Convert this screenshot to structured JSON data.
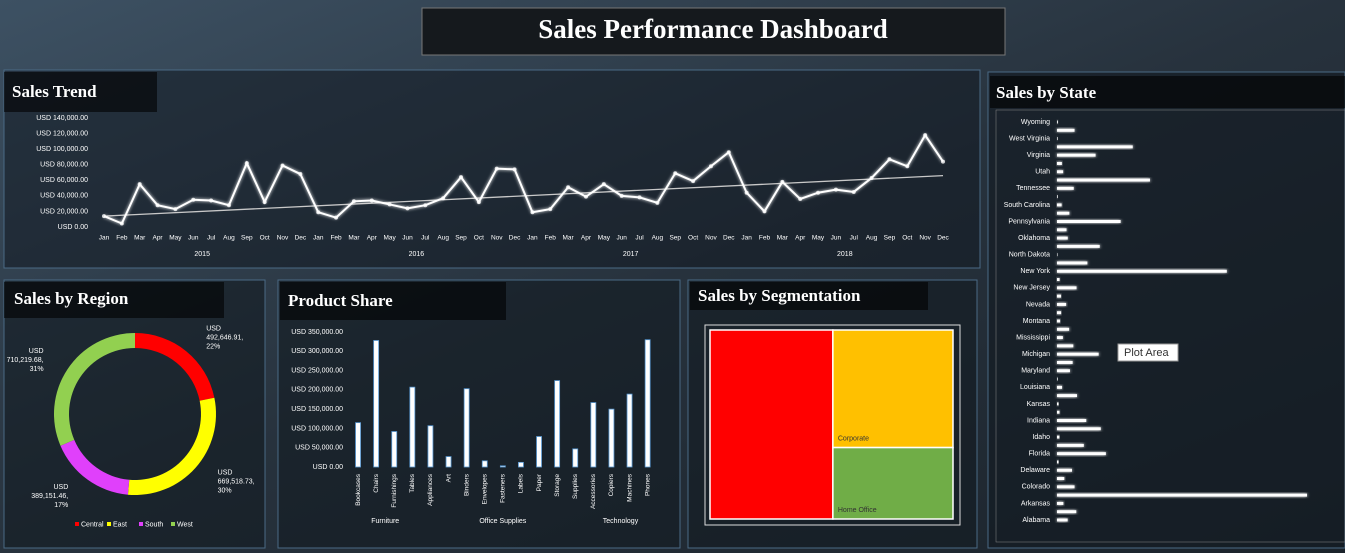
{
  "title": "Sales Performance Dashboard",
  "annotation": "Plot Area",
  "chart_data": [
    {
      "type": "line",
      "title": "Sales Trend",
      "groups": [
        {
          "label": "2015",
          "categories": [
            "Jan",
            "Feb",
            "Mar",
            "Apr",
            "May",
            "Jun",
            "Jul",
            "Aug",
            "Sep",
            "Oct",
            "Nov",
            "Dec"
          ]
        },
        {
          "label": "2016",
          "categories": [
            "Jan",
            "Feb",
            "Mar",
            "Apr",
            "May",
            "Jun",
            "Jul",
            "Aug",
            "Sep",
            "Oct",
            "Nov",
            "Dec"
          ]
        },
        {
          "label": "2017",
          "categories": [
            "Jan",
            "Feb",
            "Mar",
            "Apr",
            "May",
            "Jun",
            "Jul",
            "Aug",
            "Sep",
            "Oct",
            "Nov",
            "Dec"
          ]
        },
        {
          "label": "2018",
          "categories": [
            "Jan",
            "Feb",
            "Mar",
            "Apr",
            "May",
            "Jun",
            "Jul",
            "Aug",
            "Sep",
            "Oct",
            "Nov",
            "Dec"
          ]
        }
      ],
      "series": [
        {
          "color": "#ffffff",
          "values": [
            14000,
            4500,
            55000,
            28000,
            23000,
            35000,
            34000,
            28000,
            82000,
            32000,
            79000,
            68000,
            19000,
            12000,
            33000,
            34000,
            29000,
            24000,
            28000,
            37000,
            64000,
            32000,
            75000,
            74000,
            19000,
            23000,
            51000,
            39000,
            55000,
            40000,
            38000,
            31000,
            69000,
            59000,
            78000,
            96000,
            44000,
            20000,
            58000,
            36000,
            44000,
            48000,
            45000,
            63000,
            87000,
            78000,
            118000,
            84000
          ]
        }
      ],
      "trendline": {
        "color": "#c8c8c8",
        "values": [
          14000,
          66000
        ]
      },
      "ylim": [
        0,
        140000
      ],
      "yticks": [
        {
          "value": 0,
          "label": "USD 0.00"
        },
        {
          "value": 20000,
          "label": "USD 20,000.00"
        },
        {
          "value": 40000,
          "label": "USD 40,000.00"
        },
        {
          "value": 60000,
          "label": "USD 60,000.00"
        },
        {
          "value": 80000,
          "label": "USD 80,000.00"
        },
        {
          "value": 100000,
          "label": "USD 100,000.00"
        },
        {
          "value": 120000,
          "label": "USD 120,000.00"
        },
        {
          "value": 140000,
          "label": "USD 140,000.00"
        }
      ]
    },
    {
      "type": "donut",
      "title": "Sales by Region",
      "categories": [
        "Central",
        "East",
        "South",
        "West"
      ],
      "values": [
        492646.91,
        669518.73,
        389151.46,
        710219.68
      ],
      "value_labels": [
        "USD 492,646.91, 22%",
        "USD 669,518.73, 30%",
        "USD 389,151.46, 17%",
        "USD 710,219.68, 31%"
      ],
      "colors": [
        "#ff0000",
        "#ffff00",
        "#e040fb",
        "#92d050"
      ],
      "legend": "bottom"
    },
    {
      "type": "bar",
      "title": "Product Share",
      "groups": [
        {
          "label": "Furniture",
          "categories": [
            "Bookcases",
            "Chairs",
            "Furnishings",
            "Tables"
          ]
        },
        {
          "label": "Office Supplies",
          "categories": [
            "Appliances",
            "Art",
            "Binders",
            "Envelopes",
            "Fasteners",
            "Labels",
            "Paper",
            "Storage",
            "Supplies"
          ]
        },
        {
          "label": "Technology",
          "categories": [
            "Accessories",
            "Copiers",
            "Machines",
            "Phones"
          ]
        }
      ],
      "values": [
        115000,
        328000,
        92000,
        207000,
        107000,
        27000,
        203000,
        16000,
        3000,
        12000,
        79000,
        224000,
        47000,
        167000,
        150000,
        189000,
        330000
      ],
      "color": "#ffffff",
      "edge": "#5b9bd5",
      "ylim": [
        0,
        350000
      ],
      "yticks": [
        {
          "value": 0,
          "label": "USD 0.00"
        },
        {
          "value": 50000,
          "label": "USD 50,000.00"
        },
        {
          "value": 100000,
          "label": "USD 100,000.00"
        },
        {
          "value": 150000,
          "label": "USD 150,000.00"
        },
        {
          "value": 200000,
          "label": "USD 200,000.00"
        },
        {
          "value": 250000,
          "label": "USD 250,000.00"
        },
        {
          "value": 300000,
          "label": "USD 300,000.00"
        },
        {
          "value": 350000,
          "label": "USD 350,000.00"
        }
      ]
    },
    {
      "type": "treemap",
      "title": "Sales by Segmentation",
      "categories": [
        null,
        "Corporate",
        "Home Office"
      ],
      "values": [
        1161000,
        706000,
        429000
      ],
      "colors": [
        "#ff0000",
        "#ffc000",
        "#70ad47"
      ]
    },
    {
      "type": "hbar",
      "title": "Sales by State",
      "color": "#ffffff",
      "categories": [
        "Wyoming",
        null,
        "West Virginia",
        null,
        "Virginia",
        null,
        "Utah",
        null,
        "Tennessee",
        null,
        "South Carolina",
        null,
        "Pennsylvania",
        null,
        "Oklahoma",
        null,
        "North Dakota",
        null,
        "New York",
        null,
        "New Jersey",
        null,
        "Nevada",
        null,
        "Montana",
        null,
        "Mississippi",
        null,
        "Michigan",
        null,
        "Maryland",
        null,
        "Louisiana",
        null,
        "Kansas",
        null,
        "Indiana",
        null,
        "Idaho",
        null,
        "Florida",
        null,
        "Delaware",
        null,
        "Colorado",
        null,
        "Arkansas",
        null,
        "Alabama"
      ],
      "values": [
        1603,
        32114,
        1209,
        138641,
        70637,
        8929,
        11220,
        170188,
        30662,
        1316,
        8482,
        22628,
        116512,
        17431,
        19683,
        78258,
        920,
        55603,
        310876,
        4784,
        35764,
        7293,
        16729,
        7465,
        5589,
        22205,
        10771,
        29863,
        76270,
        28634,
        23706,
        1271,
        9217,
        36592,
        2914,
        4580,
        53555,
        80166,
        4382,
        49096,
        89474,
        2865,
        27451,
        13384,
        32108,
        457688,
        11678,
        35282,
        19511
      ]
    }
  ]
}
